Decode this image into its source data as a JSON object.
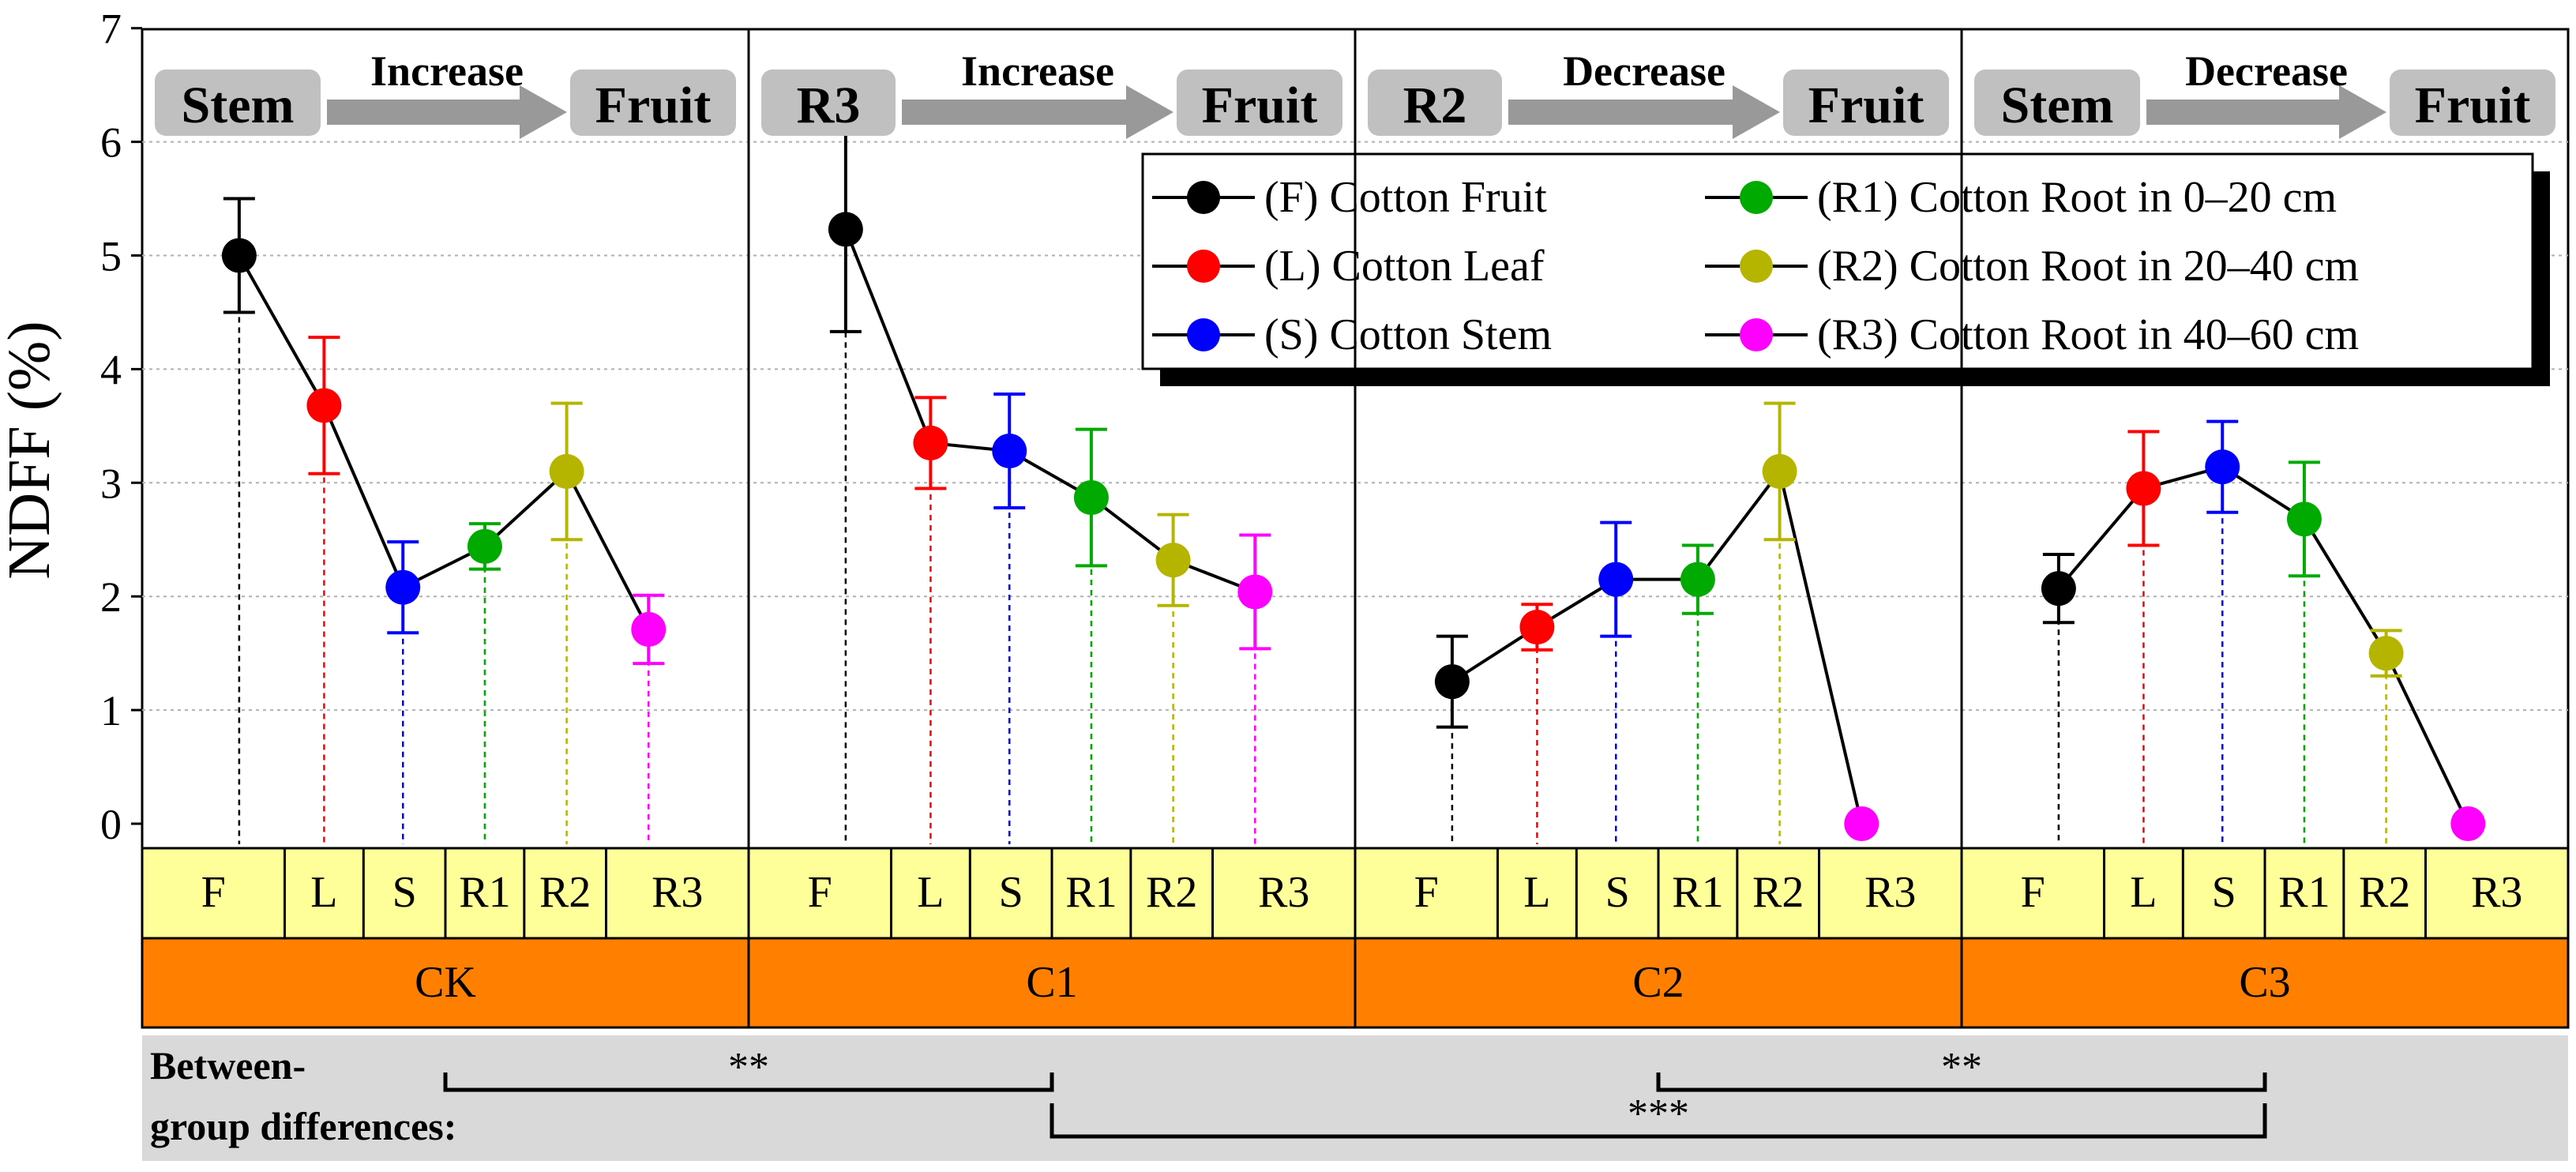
{
  "chart_data": {
    "type": "line",
    "ylabel": "NDFF (%)",
    "ylim": [
      0,
      7
    ],
    "yticks": [
      0,
      1,
      2,
      3,
      4,
      5,
      6,
      7
    ],
    "categories": [
      "F",
      "L",
      "S",
      "R1",
      "R2",
      "R3"
    ],
    "legend": [
      {
        "key": "F",
        "label": "(F) Cotton Fruit",
        "color": "#000000"
      },
      {
        "key": "L",
        "label": "(L) Cotton Leaf",
        "color": "#ff0000"
      },
      {
        "key": "S",
        "label": "(S) Cotton Stem",
        "color": "#0000ff"
      },
      {
        "key": "R1",
        "label": "(R1) Cotton Root in 0–20 cm",
        "color": "#00aa00"
      },
      {
        "key": "R2",
        "label": "(R2) Cotton Root in 20–40 cm",
        "color": "#b5b500"
      },
      {
        "key": "R3",
        "label": "(R3) Cotton Root in 40–60 cm",
        "color": "#ff00ff"
      }
    ],
    "panels": [
      {
        "name": "CK",
        "values": [
          5.0,
          3.68,
          2.08,
          2.44,
          3.1,
          1.71
        ],
        "errors": [
          0.5,
          0.6,
          0.4,
          0.2,
          0.6,
          0.3
        ],
        "annotation": {
          "from": "Stem",
          "trend": "Increase",
          "to": "Fruit"
        }
      },
      {
        "name": "C1",
        "values": [
          5.23,
          3.35,
          3.28,
          2.87,
          2.32,
          2.04
        ],
        "errors": [
          0.9,
          0.4,
          0.5,
          0.6,
          0.4,
          0.5
        ],
        "annotation": {
          "from": "R3",
          "trend": "Increase",
          "to": "Fruit"
        }
      },
      {
        "name": "C2",
        "values": [
          1.25,
          1.73,
          2.15,
          2.15,
          3.1,
          0.0
        ],
        "errors": [
          0.4,
          0.2,
          0.5,
          0.3,
          0.6,
          0.0
        ],
        "annotation": {
          "from": "R2",
          "trend": "Decrease",
          "to": "Fruit"
        }
      },
      {
        "name": "C3",
        "values": [
          2.07,
          2.95,
          3.14,
          2.68,
          1.5,
          0.0
        ],
        "errors": [
          0.3,
          0.5,
          0.4,
          0.5,
          0.2,
          0.0
        ],
        "annotation": {
          "from": "Stem",
          "trend": "Decrease",
          "to": "Fruit"
        }
      }
    ],
    "between_group": {
      "label_line1": "Between-",
      "label_line2": "group differences:",
      "comparisons": [
        {
          "groups": [
            "CK",
            "C1"
          ],
          "stars": "**"
        },
        {
          "groups": [
            "C1",
            "C3"
          ],
          "stars": "***"
        },
        {
          "groups": [
            "C2",
            "C3"
          ],
          "stars": "**"
        }
      ]
    }
  }
}
